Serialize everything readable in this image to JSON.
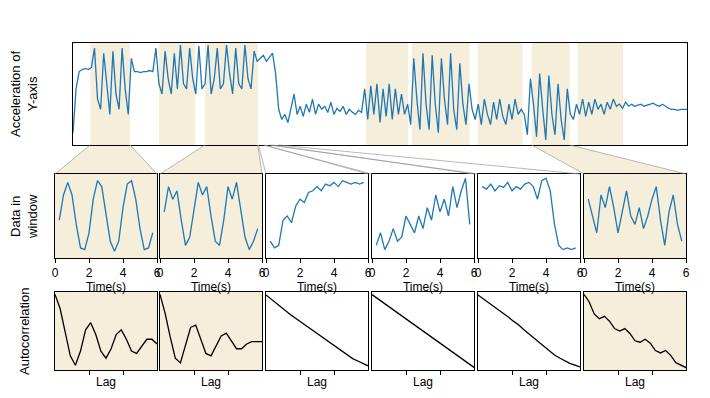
{
  "chart_data": [
    {
      "type": "line",
      "color": "#1f77b4",
      "ylabel": [
        "Acceleration of",
        "Y-axis"
      ],
      "xlim": [
        0,
        100
      ],
      "ylim": [
        0,
        1
      ],
      "xticks": [],
      "yticks": [],
      "tick_labels": false,
      "grid": false,
      "highlights": [
        [
          2.8,
          9.3
        ],
        [
          14.0,
          19.9
        ],
        [
          21.5,
          30.1
        ],
        [
          47.7,
          54.6
        ],
        [
          55.2,
          64.6
        ],
        [
          65.9,
          73.2
        ],
        [
          74.7,
          80.9
        ],
        [
          82.2,
          89.6
        ]
      ],
      "windows": [
        [
          2.8,
          9.3
        ],
        [
          21.5,
          30.1
        ],
        [
          30.2,
          31.2
        ],
        [
          31,
          32.5
        ],
        [
          32,
          33.5
        ],
        [
          74.7,
          80.9
        ]
      ],
      "x": [
        0,
        0.5,
        1,
        1.5,
        2,
        2.5,
        3,
        3.5,
        4,
        4.5,
        5,
        5.5,
        6,
        6.5,
        7,
        7.5,
        8,
        8.5,
        9,
        9.5,
        10,
        10.5,
        11,
        11.5,
        12,
        12.5,
        13,
        13.5,
        14,
        14.5,
        15,
        15.5,
        16,
        16.5,
        17,
        17.5,
        18,
        18.5,
        19,
        19.5,
        20,
        20.5,
        21,
        21.5,
        22,
        22.5,
        23,
        23.5,
        24,
        24.5,
        25,
        25.5,
        26,
        26.5,
        27,
        27.5,
        28,
        28.5,
        29,
        29.5,
        30,
        30.5,
        31,
        31.5,
        32,
        32.5,
        33,
        33.5,
        34,
        34.5,
        35,
        35.5,
        36,
        36.5,
        37,
        37.5,
        38,
        38.5,
        39,
        39.5,
        40,
        40.5,
        41,
        41.5,
        42,
        42.5,
        43,
        43.5,
        44,
        44.5,
        45,
        45.5,
        46,
        46.5,
        47,
        47.5,
        48,
        48.5,
        49,
        49.5,
        50,
        50.5,
        51,
        51.5,
        52,
        52.5,
        53,
        53.5,
        54,
        54.5,
        55,
        55.5,
        56,
        56.5,
        57,
        57.5,
        58,
        58.5,
        59,
        59.5,
        60,
        60.5,
        61,
        61.5,
        62,
        62.5,
        63,
        63.5,
        64,
        64.5,
        65,
        65.5,
        66,
        66.5,
        67,
        67.5,
        68,
        68.5,
        69,
        69.5,
        70,
        70.5,
        71,
        71.5,
        72,
        72.5,
        73,
        73.5,
        74,
        74.5,
        75,
        75.5,
        76,
        76.5,
        77,
        77.5,
        78,
        78.5,
        79,
        79.5,
        80,
        80.5,
        81,
        81.5,
        82,
        82.5,
        83,
        83.5,
        84,
        84.5,
        85,
        85.5,
        86,
        86.5,
        87,
        87.5,
        88,
        88.5,
        89,
        89.5,
        90,
        90.5,
        91,
        91.5,
        92,
        92.5,
        93,
        93.5,
        94,
        94.5,
        95,
        95.5,
        96,
        96.5,
        97,
        97.5,
        98,
        98.5,
        99,
        99.5,
        100
      ],
      "values": [
        0.12,
        0.55,
        0.72,
        0.74,
        0.75,
        0.74,
        0.76,
        0.95,
        0.45,
        0.35,
        0.9,
        0.6,
        0.3,
        0.92,
        0.5,
        0.35,
        0.95,
        0.55,
        0.3,
        0.85,
        0.72,
        0.72,
        0.71,
        0.72,
        0.72,
        0.73,
        0.72,
        0.95,
        0.6,
        0.5,
        0.92,
        0.65,
        0.5,
        0.9,
        0.55,
        0.98,
        0.6,
        0.55,
        0.95,
        0.65,
        0.5,
        0.97,
        0.55,
        0.6,
        0.98,
        0.5,
        0.65,
        0.95,
        0.55,
        0.6,
        0.98,
        0.7,
        0.5,
        0.95,
        0.6,
        0.55,
        0.98,
        0.65,
        0.55,
        0.92,
        0.82,
        0.85,
        0.88,
        0.82,
        0.86,
        0.9,
        0.7,
        0.35,
        0.25,
        0.3,
        0.22,
        0.35,
        0.5,
        0.3,
        0.38,
        0.28,
        0.4,
        0.32,
        0.45,
        0.3,
        0.4,
        0.35,
        0.38,
        0.32,
        0.42,
        0.3,
        0.36,
        0.33,
        0.38,
        0.3,
        0.35,
        0.32,
        0.3,
        0.34,
        0.32,
        0.55,
        0.25,
        0.58,
        0.3,
        0.6,
        0.22,
        0.55,
        0.28,
        0.6,
        0.25,
        0.55,
        0.3,
        0.5,
        0.3,
        0.4,
        0.2,
        0.85,
        0.45,
        0.15,
        0.9,
        0.4,
        0.15,
        0.88,
        0.4,
        0.12,
        0.85,
        0.45,
        0.2,
        0.9,
        0.35,
        0.15,
        0.8,
        0.4,
        0.2,
        0.6,
        0.35,
        0.25,
        0.4,
        0.2,
        0.45,
        0.3,
        0.2,
        0.42,
        0.25,
        0.45,
        0.28,
        0.2,
        0.4,
        0.25,
        0.45,
        0.3,
        0.35,
        0.3,
        0.1,
        0.65,
        0.4,
        0.08,
        0.7,
        0.35,
        0.05,
        0.68,
        0.3,
        0.1,
        0.6,
        0.25,
        0.05,
        0.55,
        0.3,
        0.25,
        0.4,
        0.3,
        0.45,
        0.28,
        0.42,
        0.3,
        0.45,
        0.35,
        0.4,
        0.3,
        0.42,
        0.35,
        0.45,
        0.38,
        0.4,
        0.36,
        0.42,
        0.38,
        0.4,
        0.38,
        0.39,
        0.4,
        0.38,
        0.39,
        0.4,
        0.41,
        0.39,
        0.38,
        0.4,
        0.38,
        0.36,
        0.35,
        0.35,
        0.34,
        0.35,
        0.35,
        0.35
      ]
    },
    {
      "type": "line",
      "color": "#1f77b4",
      "ylabel": [
        "Data in",
        "window"
      ],
      "xlabel": "Time(s)",
      "xlim": [
        0,
        6
      ],
      "ylim": [
        0,
        1
      ],
      "xticks": [
        0,
        2,
        4,
        6
      ],
      "yticks": [],
      "tick_labels": "x",
      "grid": false,
      "x": [
        0.25,
        0.5,
        0.75,
        1,
        1.25,
        1.5,
        1.75,
        2,
        2.25,
        2.5,
        2.75,
        3,
        3.25,
        3.5,
        3.75,
        4,
        4.25,
        4.5,
        4.75,
        5,
        5.25,
        5.5,
        5.75
      ],
      "values": [
        0.45,
        0.75,
        0.9,
        0.75,
        0.4,
        0.12,
        0.1,
        0.3,
        0.7,
        0.92,
        0.85,
        0.55,
        0.2,
        0.08,
        0.2,
        0.6,
        0.88,
        0.92,
        0.7,
        0.35,
        0.1,
        0.12,
        0.3
      ]
    },
    {
      "type": "line",
      "color": "#1f77b4",
      "xlabel": "Time(s)",
      "xlim": [
        0,
        6
      ],
      "ylim": [
        0,
        1
      ],
      "xticks": [
        0,
        2,
        4,
        6
      ],
      "yticks": [],
      "tick_labels": "x",
      "grid": false,
      "x": [
        0.25,
        0.5,
        0.75,
        1,
        1.25,
        1.5,
        1.75,
        2,
        2.25,
        2.5,
        2.75,
        3,
        3.25,
        3.5,
        3.75,
        4,
        4.25,
        4.5,
        4.75,
        5,
        5.25,
        5.5,
        5.75
      ],
      "values": [
        0.55,
        0.85,
        0.7,
        0.8,
        0.45,
        0.15,
        0.25,
        0.55,
        0.9,
        0.75,
        0.85,
        0.5,
        0.2,
        0.15,
        0.45,
        0.85,
        0.7,
        0.9,
        0.55,
        0.25,
        0.1,
        0.2,
        0.35
      ]
    },
    {
      "type": "line",
      "color": "#1f77b4",
      "xlabel": "Time(s)",
      "xlim": [
        0,
        6
      ],
      "ylim": [
        0,
        1
      ],
      "xticks": [
        0,
        2,
        4,
        6
      ],
      "yticks": [],
      "tick_labels": "x",
      "grid": false,
      "x": [
        0.25,
        0.5,
        0.75,
        1,
        1.25,
        1.5,
        1.75,
        2,
        2.25,
        2.5,
        2.75,
        3,
        3.25,
        3.5,
        3.75,
        4,
        4.25,
        4.5,
        4.75,
        5,
        5.25,
        5.5,
        5.75
      ],
      "values": [
        0.2,
        0.12,
        0.15,
        0.45,
        0.5,
        0.42,
        0.62,
        0.7,
        0.66,
        0.78,
        0.8,
        0.85,
        0.8,
        0.88,
        0.86,
        0.9,
        0.85,
        0.92,
        0.9,
        0.88,
        0.9,
        0.88,
        0.9
      ]
    },
    {
      "type": "line",
      "color": "#1f77b4",
      "xlabel": "Time(s)",
      "xlim": [
        0,
        6
      ],
      "ylim": [
        0,
        1
      ],
      "xticks": [
        0,
        2,
        4,
        6
      ],
      "yticks": [],
      "tick_labels": "x",
      "grid": false,
      "x": [
        0.25,
        0.5,
        0.75,
        1,
        1.25,
        1.5,
        1.75,
        2,
        2.25,
        2.5,
        2.75,
        3,
        3.25,
        3.5,
        3.75,
        4,
        4.25,
        4.5,
        4.75,
        5,
        5.25,
        5.5,
        5.75
      ],
      "values": [
        0.15,
        0.3,
        0.1,
        0.2,
        0.35,
        0.2,
        0.25,
        0.5,
        0.4,
        0.3,
        0.5,
        0.35,
        0.6,
        0.45,
        0.75,
        0.55,
        0.7,
        0.5,
        0.85,
        0.6,
        0.8,
        0.95,
        0.4
      ]
    },
    {
      "type": "line",
      "color": "#1f77b4",
      "xlabel": "Time(s)",
      "xlim": [
        0,
        6
      ],
      "ylim": [
        0,
        1
      ],
      "xticks": [
        0,
        2,
        4,
        6
      ],
      "yticks": [],
      "tick_labels": "x",
      "grid": false,
      "x": [
        0.25,
        0.5,
        0.75,
        1,
        1.25,
        1.5,
        1.75,
        2,
        2.25,
        2.5,
        2.75,
        3,
        3.25,
        3.5,
        3.75,
        4,
        4.25,
        4.5,
        4.75,
        5,
        5.25,
        5.5,
        5.75
      ],
      "values": [
        0.85,
        0.82,
        0.88,
        0.8,
        0.86,
        0.84,
        0.9,
        0.8,
        0.85,
        0.82,
        0.88,
        0.9,
        0.85,
        0.7,
        0.92,
        0.95,
        0.8,
        0.4,
        0.15,
        0.1,
        0.12,
        0.1,
        0.12
      ]
    },
    {
      "type": "line",
      "color": "#1f77b4",
      "xlabel": "Time(s)",
      "xlim": [
        0,
        6
      ],
      "ylim": [
        0,
        1
      ],
      "xticks": [
        0,
        2,
        4,
        6
      ],
      "yticks": [],
      "tick_labels": "x",
      "grid": false,
      "x": [
        0.25,
        0.5,
        0.75,
        1,
        1.25,
        1.5,
        1.75,
        2,
        2.25,
        2.5,
        2.75,
        3,
        3.25,
        3.5,
        3.75,
        4,
        4.25,
        4.5,
        4.75,
        5,
        5.25,
        5.5,
        5.75
      ],
      "values": [
        0.7,
        0.5,
        0.3,
        0.75,
        0.6,
        0.85,
        0.6,
        0.3,
        0.55,
        0.8,
        0.5,
        0.4,
        0.6,
        0.35,
        0.5,
        0.7,
        0.85,
        0.45,
        0.15,
        0.55,
        0.75,
        0.4,
        0.2
      ]
    },
    {
      "type": "line",
      "color": "#000000",
      "ylabel": [
        "Autocorrelation"
      ],
      "xlabel": "Lag",
      "xlim": [
        0,
        60
      ],
      "ylim": [
        -0.6,
        1.05
      ],
      "xticks": [
        20,
        40
      ],
      "yticks": [],
      "tick_labels": false,
      "grid": false,
      "x": [
        0,
        3,
        6,
        9,
        12,
        15,
        18,
        21,
        24,
        27,
        30,
        33,
        36,
        39,
        42,
        45,
        48,
        51,
        54,
        57,
        60
      ],
      "values": [
        1,
        0.7,
        0.2,
        -0.3,
        -0.5,
        -0.2,
        0.25,
        0.4,
        0.15,
        -0.2,
        -0.35,
        -0.15,
        0.15,
        0.25,
        0.05,
        -0.2,
        -0.25,
        -0.1,
        0.05,
        0.05,
        -0.05
      ]
    },
    {
      "type": "line",
      "color": "#000000",
      "xlabel": "Lag",
      "xlim": [
        0,
        60
      ],
      "ylim": [
        -0.6,
        1.05
      ],
      "xticks": [
        20,
        40
      ],
      "yticks": [],
      "tick_labels": false,
      "grid": false,
      "x": [
        0,
        3,
        6,
        9,
        12,
        15,
        18,
        21,
        24,
        27,
        30,
        33,
        36,
        39,
        42,
        45,
        48,
        51,
        54,
        57,
        60
      ],
      "values": [
        1,
        0.6,
        0.1,
        -0.35,
        -0.45,
        -0.1,
        0.3,
        0.35,
        0.05,
        -0.25,
        -0.3,
        -0.1,
        0.12,
        0.18,
        0,
        -0.15,
        -0.15,
        -0.05,
        0,
        0,
        0
      ]
    },
    {
      "type": "line",
      "color": "#000000",
      "xlabel": "Lag",
      "xlim": [
        0,
        60
      ],
      "ylim": [
        -0.25,
        1.05
      ],
      "xticks": [
        20,
        40
      ],
      "yticks": [],
      "tick_labels": false,
      "grid": false,
      "x": [
        0,
        3,
        6,
        9,
        12,
        15,
        18,
        21,
        24,
        27,
        30,
        33,
        36,
        39,
        42,
        45,
        48,
        51,
        54,
        57,
        60
      ],
      "values": [
        1,
        0.93,
        0.86,
        0.79,
        0.72,
        0.66,
        0.6,
        0.54,
        0.48,
        0.42,
        0.36,
        0.3,
        0.24,
        0.18,
        0.12,
        0.06,
        0,
        -0.06,
        -0.1,
        -0.14,
        -0.18
      ]
    },
    {
      "type": "line",
      "color": "#000000",
      "xlabel": "Lag",
      "xlim": [
        0,
        60
      ],
      "ylim": [
        -0.45,
        1.05
      ],
      "xticks": [
        20,
        40
      ],
      "yticks": [],
      "tick_labels": false,
      "grid": false,
      "x": [
        0,
        3,
        6,
        9,
        12,
        15,
        18,
        21,
        24,
        27,
        30,
        33,
        36,
        39,
        42,
        45,
        48,
        51,
        54,
        57,
        60
      ],
      "values": [
        1,
        0.93,
        0.86,
        0.79,
        0.72,
        0.65,
        0.58,
        0.51,
        0.44,
        0.37,
        0.3,
        0.23,
        0.16,
        0.09,
        0.02,
        -0.05,
        -0.12,
        -0.19,
        -0.26,
        -0.33,
        -0.4
      ]
    },
    {
      "type": "line",
      "color": "#000000",
      "xlabel": "Lag",
      "xlim": [
        0,
        60
      ],
      "ylim": [
        -0.25,
        1.05
      ],
      "xticks": [
        20,
        40
      ],
      "yticks": [],
      "tick_labels": false,
      "grid": false,
      "x": [
        0,
        3,
        6,
        9,
        12,
        15,
        18,
        21,
        24,
        27,
        30,
        33,
        36,
        39,
        42,
        45,
        48,
        51,
        54,
        57,
        60
      ],
      "values": [
        1,
        0.94,
        0.88,
        0.82,
        0.76,
        0.7,
        0.63,
        0.56,
        0.5,
        0.42,
        0.35,
        0.28,
        0.2,
        0.13,
        0.06,
        0,
        -0.05,
        -0.1,
        -0.14,
        -0.17,
        -0.2
      ]
    },
    {
      "type": "line",
      "color": "#000000",
      "xlabel": "Lag",
      "xlim": [
        0,
        60
      ],
      "ylim": [
        -0.55,
        1.05
      ],
      "xticks": [
        20,
        40
      ],
      "yticks": [],
      "tick_labels": false,
      "grid": false,
      "x": [
        0,
        3,
        6,
        9,
        12,
        15,
        18,
        21,
        24,
        27,
        30,
        33,
        36,
        39,
        42,
        45,
        48,
        51,
        54,
        57,
        60
      ],
      "values": [
        1,
        0.85,
        0.6,
        0.5,
        0.55,
        0.45,
        0.3,
        0.25,
        0.3,
        0.2,
        0.05,
        0.02,
        0.08,
        0,
        -0.15,
        -0.2,
        -0.15,
        -0.25,
        -0.4,
        -0.45,
        -0.5
      ]
    }
  ]
}
